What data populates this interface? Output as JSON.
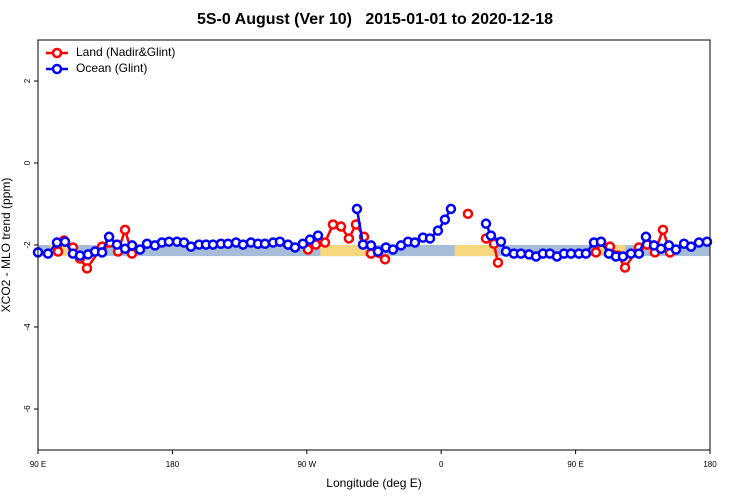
{
  "chart_data": {
    "type": "line",
    "title": "5S-0 August (Ver 10)   2015-01-01 to 2020-12-18",
    "xlabel": "Longitude (deg E)",
    "ylabel": "XCO2 - MLO trend (ppm)",
    "xlim": [
      90,
      540
    ],
    "ylim": [
      -7,
      3
    ],
    "xticks": [
      {
        "value": 90,
        "label": "90 E"
      },
      {
        "value": 180,
        "label": "180"
      },
      {
        "value": 270,
        "label": "90 W"
      },
      {
        "value": 360,
        "label": "0"
      },
      {
        "value": 450,
        "label": "90 E"
      },
      {
        "value": 540,
        "label": "180"
      }
    ],
    "yticks": [
      2,
      0,
      -2,
      -4,
      -6
    ],
    "legend": "top-left",
    "band": {
      "range": [
        -2.0,
        -2.27
      ],
      "color": "#a7bcd9"
    },
    "land_spans": {
      "x": [
        [
          98,
          115
        ],
        [
          279,
          309
        ],
        [
          369,
          396
        ],
        [
          466,
          483
        ]
      ],
      "color": "#f7d77f"
    },
    "series": [
      {
        "name": "Land (Nadir&Glint)",
        "color": "#ff0000",
        "x": [
          103.4,
          107.4,
          113.4,
          118.1,
          122.8,
          132.9,
          138.2,
          143.6,
          148.3,
          152.9,
          null,
          270.8,
          276.1,
          282.2,
          287.5,
          292.9,
          298.2,
          302.9,
          308.3,
          313.0,
          322.4,
          null,
          377.9,
          null,
          390.0,
          395.3,
          398.0,
          null,
          463.6,
          467.0,
          473.0,
          478.4,
          483.1,
          492.4,
          497.8,
          503.1,
          508.5,
          513.2
        ],
        "values": [
          -2.16,
          -1.89,
          -2.06,
          -2.33,
          -2.57,
          -2.04,
          -1.94,
          -2.16,
          -1.63,
          -2.21,
          null,
          -2.11,
          -1.99,
          -1.94,
          -1.5,
          -1.55,
          -1.84,
          -1.5,
          -1.8,
          -2.21,
          -2.35,
          null,
          -1.24,
          null,
          -1.84,
          -1.97,
          -2.43,
          null,
          -2.18,
          -1.92,
          -2.04,
          -2.26,
          -2.55,
          -2.06,
          -1.99,
          -2.18,
          -1.63,
          -2.18
        ]
      },
      {
        "name": "Ocean (Glint)",
        "color": "#0000ff",
        "x": [
          90,
          96.7,
          102.7,
          108.1,
          113.4,
          118.1,
          123.5,
          128.2,
          132.9,
          137.6,
          142.9,
          148.3,
          153.0,
          158.3,
          163.0,
          168.3,
          173.0,
          177.7,
          183.1,
          187.8,
          192.4,
          197.8,
          202.5,
          207.2,
          212.5,
          217.2,
          222.6,
          227.3,
          232.6,
          237.3,
          242.0,
          247.4,
          252.0,
          257.4,
          262.1,
          267.4,
          272.1,
          277.5,
          null,
          303.6,
          307.6,
          313.0,
          317.7,
          323.0,
          327.7,
          333.1,
          337.8,
          342.4,
          347.8,
          352.5,
          357.8,
          362.5,
          366.5,
          null,
          390.0,
          393.3,
          400.0,
          403.4,
          408.7,
          413.4,
          418.8,
          423.5,
          428.1,
          432.8,
          437.5,
          442.2,
          446.9,
          452.2,
          456.9,
          462.3,
          467.0,
          472.3,
          477.0,
          481.7,
          487.1,
          492.4,
          497.1,
          502.5,
          507.2,
          512.5,
          517.2,
          522.6,
          527.3,
          532.6,
          538.0
        ],
        "values": [
          -2.18,
          -2.21,
          -1.94,
          -1.92,
          -2.21,
          -2.26,
          -2.23,
          -2.16,
          -2.18,
          -1.8,
          -1.99,
          -2.09,
          -2.01,
          -2.11,
          -1.97,
          -2.01,
          -1.94,
          -1.92,
          -1.92,
          -1.94,
          -2.04,
          -1.99,
          -1.99,
          -1.99,
          -1.97,
          -1.97,
          -1.94,
          -1.99,
          -1.94,
          -1.97,
          -1.97,
          -1.94,
          -1.92,
          -1.99,
          -2.06,
          -1.97,
          -1.87,
          -1.77,
          null,
          -1.12,
          -1.99,
          -2.01,
          -2.16,
          -2.06,
          -2.11,
          -2.01,
          -1.92,
          -1.94,
          -1.82,
          -1.84,
          -1.65,
          -1.38,
          -1.12,
          null,
          -1.48,
          -1.77,
          -1.92,
          -2.16,
          -2.21,
          -2.21,
          -2.23,
          -2.28,
          -2.21,
          -2.21,
          -2.28,
          -2.21,
          -2.21,
          -2.21,
          -2.21,
          -1.94,
          -1.92,
          -2.21,
          -2.28,
          -2.28,
          -2.21,
          -2.21,
          -1.8,
          -2.01,
          -2.09,
          -2.01,
          -2.11,
          -1.97,
          -2.04,
          -1.94,
          -1.92
        ]
      }
    ]
  }
}
